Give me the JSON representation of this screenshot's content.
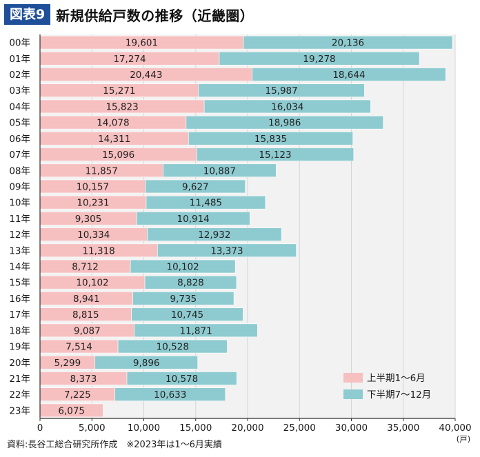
{
  "header": {
    "badge": "図表9",
    "title": "新規供給戸数の推移（近畿圏）"
  },
  "footer": {
    "source": "資料:長谷工総合研究所作成　※2023年は1〜6月実績"
  },
  "chart_data": {
    "type": "bar",
    "orientation": "horizontal",
    "stacked": true,
    "title": "新規供給戸数の推移（近畿圏）",
    "categories": [
      "00年",
      "01年",
      "02年",
      "03年",
      "04年",
      "05年",
      "06年",
      "07年",
      "08年",
      "09年",
      "10年",
      "11年",
      "12年",
      "13年",
      "14年",
      "15年",
      "16年",
      "17年",
      "18年",
      "19年",
      "20年",
      "21年",
      "22年",
      "23年"
    ],
    "series": [
      {
        "name": "上半期1〜6月",
        "color": "#f6bfc0",
        "values": [
          19601,
          17274,
          20443,
          15271,
          15823,
          14078,
          14311,
          15096,
          11857,
          10157,
          10231,
          9305,
          10334,
          11318,
          8712,
          10102,
          8941,
          8815,
          9087,
          7514,
          5299,
          8373,
          7225,
          6075
        ],
        "labels": [
          "19,601",
          "17,274",
          "20,443",
          "15,271",
          "15,823",
          "14,078",
          "14,311",
          "15,096",
          "11,857",
          "10,157",
          "10,231",
          "9,305",
          "10,334",
          "11,318",
          "8,712",
          "10,102",
          "8,941",
          "8,815",
          "9,087",
          "7,514",
          "5,299",
          "8,373",
          "7,225",
          "6,075"
        ]
      },
      {
        "name": "下半期7〜12月",
        "color": "#8ecbd0",
        "values": [
          20136,
          19278,
          18644,
          15987,
          16034,
          18986,
          15835,
          15123,
          10887,
          9627,
          11485,
          10914,
          12932,
          13373,
          10102,
          8828,
          9735,
          10745,
          11871,
          10528,
          9896,
          10578,
          10633,
          null
        ],
        "labels": [
          "20,136",
          "19,278",
          "18,644",
          "15,987",
          "16,034",
          "18,986",
          "15,835",
          "15,123",
          "10,887",
          "9,627",
          "11,485",
          "10,914",
          "12,932",
          "13,373",
          "10,102",
          "8,828",
          "9,735",
          "10,745",
          "11,871",
          "10,528",
          "9,896",
          "10,578",
          "10,633",
          ""
        ]
      }
    ],
    "xlim": [
      0,
      40000
    ],
    "xticks": [
      0,
      5000,
      10000,
      15000,
      20000,
      25000,
      30000,
      35000,
      40000
    ],
    "xtick_labels": [
      "0",
      "5,000",
      "10,000",
      "15,000",
      "20,000",
      "25,000",
      "30,000",
      "35,000",
      "40,000"
    ],
    "xlabel": "(戸)",
    "ylabel": "",
    "grid": true,
    "legend_position": "bottom-right"
  }
}
